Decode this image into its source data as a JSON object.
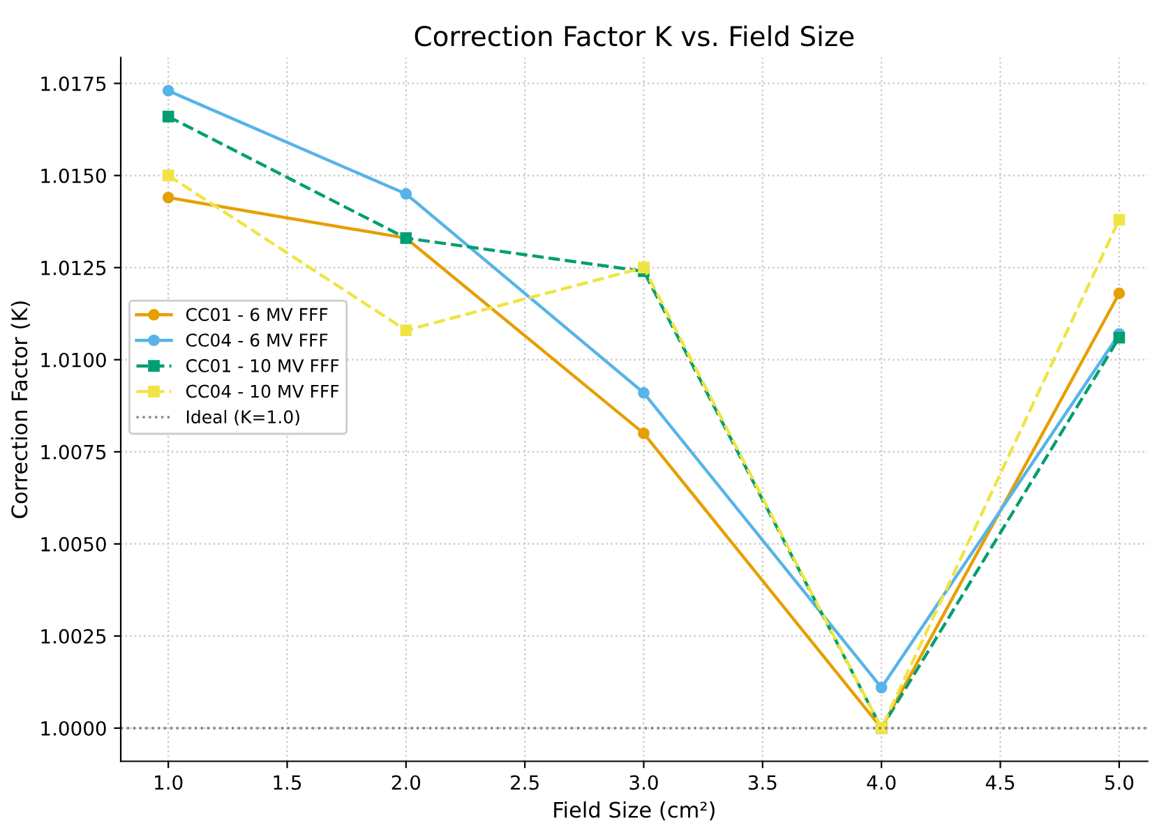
{
  "chart_data": {
    "type": "line",
    "title": "Correction Factor K vs. Field Size",
    "xlabel": "Field Size (cm²)",
    "ylabel": "Correction Factor (K)",
    "x": [
      1.0,
      2.0,
      3.0,
      4.0,
      5.0
    ],
    "series": [
      {
        "name": "CC01 - 6 MV FFF",
        "color": "#e69f00",
        "marker": "circle",
        "line_style": "solid",
        "values": [
          1.0144,
          1.0133,
          1.008,
          1.0,
          1.0118
        ]
      },
      {
        "name": "CC04 - 6 MV FFF",
        "color": "#56b4e9",
        "marker": "circle",
        "line_style": "solid",
        "values": [
          1.0173,
          1.0145,
          1.0091,
          1.0011,
          1.0107
        ]
      },
      {
        "name": "CC01 - 10 MV FFF",
        "color": "#009e73",
        "marker": "square",
        "line_style": "dashed",
        "values": [
          1.0166,
          1.0133,
          1.0124,
          1.0,
          1.0106
        ]
      },
      {
        "name": "CC04 - 10 MV FFF",
        "color": "#f0e442",
        "marker": "square",
        "line_style": "dashed",
        "values": [
          1.015,
          1.0108,
          1.0125,
          1.0,
          1.0138
        ]
      }
    ],
    "ref_lines": [
      {
        "axis": "y",
        "value": 1.0,
        "label": "Ideal (K=1.0)",
        "color": "#808080",
        "line_style": "dotted"
      }
    ],
    "xlim": [
      0.8,
      5.12
    ],
    "ylim": [
      0.9991,
      1.0182
    ],
    "xticks": [
      {
        "value": 1.0,
        "label": "1.0"
      },
      {
        "value": 1.5,
        "label": "1.5"
      },
      {
        "value": 2.0,
        "label": "2.0"
      },
      {
        "value": 2.5,
        "label": "2.5"
      },
      {
        "value": 3.0,
        "label": "3.0"
      },
      {
        "value": 3.5,
        "label": "3.5"
      },
      {
        "value": 4.0,
        "label": "4.0"
      },
      {
        "value": 4.5,
        "label": "4.5"
      },
      {
        "value": 5.0,
        "label": "5.0"
      }
    ],
    "yticks": [
      {
        "value": 1.0,
        "label": "1.0000"
      },
      {
        "value": 1.0025,
        "label": "1.0025"
      },
      {
        "value": 1.005,
        "label": "1.0050"
      },
      {
        "value": 1.0075,
        "label": "1.0075"
      },
      {
        "value": 1.01,
        "label": "1.0100"
      },
      {
        "value": 1.0125,
        "label": "1.0125"
      },
      {
        "value": 1.015,
        "label": "1.0150"
      },
      {
        "value": 1.0175,
        "label": "1.0175"
      }
    ],
    "grid": true,
    "legend": "left"
  }
}
